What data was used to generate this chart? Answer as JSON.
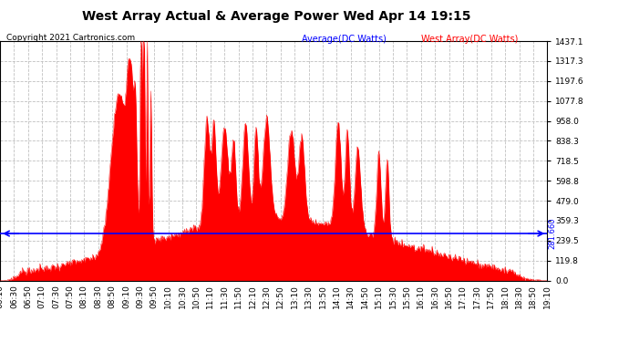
{
  "title": "West Array Actual & Average Power Wed Apr 14 19:15",
  "copyright": "Copyright 2021 Cartronics.com",
  "legend_avg": "Average(DC Watts)",
  "legend_west": "West Array(DC Watts)",
  "avg_value": 281.66,
  "ylim_max": 1437.1,
  "ytick_labels": [
    "0.0",
    "119.8",
    "239.5",
    "359.3",
    "479.0",
    "598.8",
    "718.5",
    "838.3",
    "958.0",
    "1077.8",
    "1197.6",
    "1317.3",
    "1437.1"
  ],
  "ytick_values": [
    0.0,
    119.8,
    239.5,
    359.3,
    479.0,
    598.8,
    718.5,
    838.3,
    958.0,
    1077.8,
    1197.6,
    1317.3,
    1437.1
  ],
  "avg_label": "281.660",
  "background_color": "#ffffff",
  "fill_color": "#ff0000",
  "avg_line_color": "#0000ff",
  "grid_color": "#c0c0c0",
  "title_color": "#000000",
  "copyright_color": "#000000",
  "legend_avg_color": "#0000ff",
  "legend_west_color": "#ff0000",
  "title_fontsize": 10,
  "tick_fontsize": 6.5,
  "copyright_fontsize": 6.5
}
